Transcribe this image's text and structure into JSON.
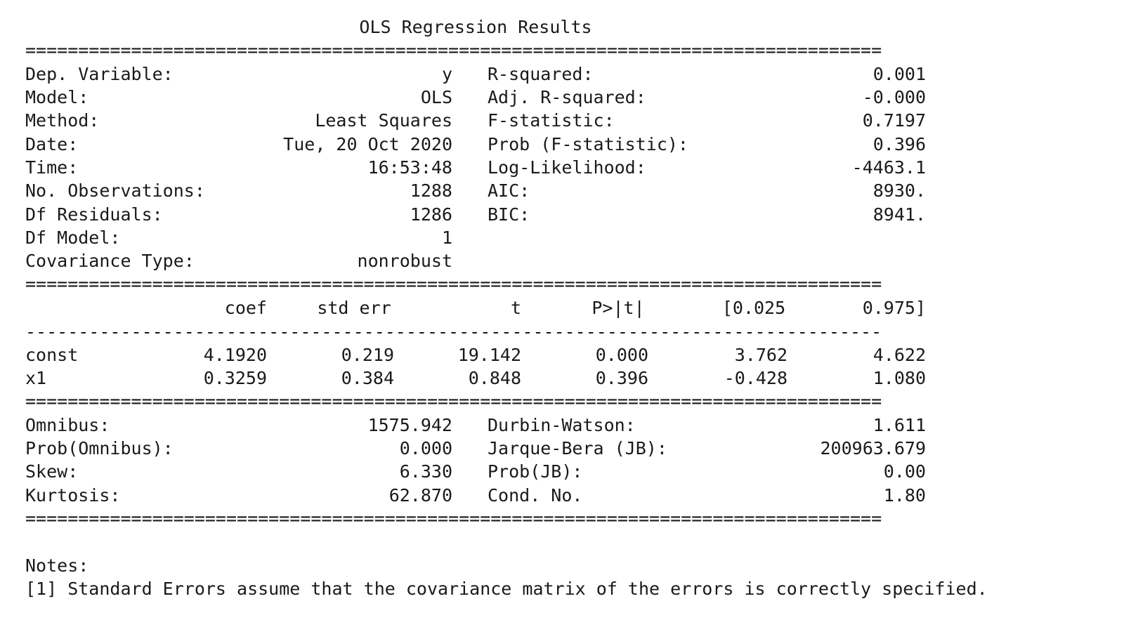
{
  "title": "OLS Regression Results",
  "rules": {
    "double": "=================================================================================",
    "single": "---------------------------------------------------------------------------------"
  },
  "model_summary": {
    "left": [
      {
        "label": "Dep. Variable:",
        "value": "y"
      },
      {
        "label": "Model:",
        "value": "OLS"
      },
      {
        "label": "Method:",
        "value": "Least Squares"
      },
      {
        "label": "Date:",
        "value": "Tue, 20 Oct 2020"
      },
      {
        "label": "Time:",
        "value": "16:53:48"
      },
      {
        "label": "No. Observations:",
        "value": "1288"
      },
      {
        "label": "Df Residuals:",
        "value": "1286"
      },
      {
        "label": "Df Model:",
        "value": "1"
      },
      {
        "label": "Covariance Type:",
        "value": "nonrobust"
      }
    ],
    "right": [
      {
        "label": "R-squared:",
        "value": "0.001"
      },
      {
        "label": "Adj. R-squared:",
        "value": "-0.000"
      },
      {
        "label": "F-statistic:",
        "value": "0.7197"
      },
      {
        "label": "Prob (F-statistic):",
        "value": "0.396"
      },
      {
        "label": "Log-Likelihood:",
        "value": "-4463.1"
      },
      {
        "label": "AIC:",
        "value": "8930."
      },
      {
        "label": "BIC:",
        "value": "8941."
      }
    ]
  },
  "coef_table": {
    "headers": [
      "coef",
      "std err",
      "t",
      "P>|t|",
      "[0.025",
      "0.975]"
    ],
    "rows": [
      {
        "name": "const",
        "values": [
          "4.1920",
          "0.219",
          "19.142",
          "0.000",
          "3.762",
          "4.622"
        ]
      },
      {
        "name": "x1",
        "values": [
          "0.3259",
          "0.384",
          "0.848",
          "0.396",
          "-0.428",
          "1.080"
        ]
      }
    ]
  },
  "diagnostics": {
    "left": [
      {
        "label": "Omnibus:",
        "value": "1575.942"
      },
      {
        "label": "Prob(Omnibus):",
        "value": "0.000"
      },
      {
        "label": "Skew:",
        "value": "6.330"
      },
      {
        "label": "Kurtosis:",
        "value": "62.870"
      }
    ],
    "right": [
      {
        "label": "Durbin-Watson:",
        "value": "1.611"
      },
      {
        "label": "Jarque-Bera (JB):",
        "value": "200963.679"
      },
      {
        "label": "Prob(JB):",
        "value": "0.00"
      },
      {
        "label": "Cond. No.",
        "value": "1.80"
      }
    ]
  },
  "notes": {
    "heading": "Notes:",
    "items": [
      "[1] Standard Errors assume that the covariance matrix of the errors is correctly specified."
    ]
  }
}
